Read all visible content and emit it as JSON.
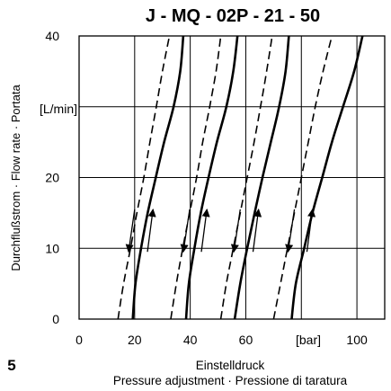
{
  "chart_data": {
    "type": "line",
    "title": "J - MQ - 02P - 21 - 50",
    "xlabel": "Einstelldruck",
    "xlabel_line2": "Pressure adjustment · Pressione di taratura",
    "ylabel": "Durchflußstrom · Flow rate · Portata",
    "x_unit": "[bar]",
    "y_unit": "[L/min]",
    "figure_number": "5",
    "xlim": [
      0,
      110
    ],
    "ylim": [
      0,
      40
    ],
    "x_ticks": [
      "0",
      "20",
      "40",
      "60",
      "",
      "100"
    ],
    "x_tick_values": [
      0,
      20,
      40,
      60,
      80,
      100
    ],
    "y_ticks": [
      "0",
      "10",
      "20",
      "",
      "40"
    ],
    "y_tick_values": [
      0,
      10,
      20,
      30,
      40
    ],
    "grid": true,
    "line_styles": [
      "solid",
      "dashed"
    ],
    "series": [
      {
        "style": "solid",
        "x": [
          19.3,
          20.3,
          22.3,
          24.7,
          27.6,
          30.6,
          34.0,
          36.4,
          37.5
        ],
        "y": [
          0,
          5,
          10,
          15,
          20,
          25,
          30,
          35,
          40
        ]
      },
      {
        "style": "dashed",
        "x": [
          14.0,
          16.0,
          18.5,
          20.8,
          23.3,
          25.5,
          27.8,
          30.0,
          32.5
        ],
        "y": [
          0,
          5,
          10,
          15,
          20,
          25,
          30,
          35,
          40
        ]
      },
      {
        "style": "solid",
        "x": [
          38.5,
          39.5,
          41.5,
          43.8,
          46.6,
          49.6,
          53.0,
          55.5,
          57.0
        ],
        "y": [
          0,
          5,
          10,
          15,
          20,
          25,
          30,
          35,
          40
        ]
      },
      {
        "style": "dashed",
        "x": [
          33.0,
          35.0,
          37.3,
          39.8,
          42.3,
          44.5,
          47.0,
          49.3,
          51.0
        ],
        "y": [
          0,
          5,
          10,
          15,
          20,
          25,
          30,
          35,
          40
        ]
      },
      {
        "style": "solid",
        "x": [
          56.0,
          58.0,
          60.5,
          63.2,
          66.0,
          69.0,
          72.0,
          74.3,
          75.5
        ],
        "y": [
          0,
          5,
          10,
          15,
          20,
          25,
          30,
          35,
          40
        ]
      },
      {
        "style": "dashed",
        "x": [
          51.0,
          53.0,
          55.5,
          58.0,
          60.5,
          63.0,
          65.3,
          67.5,
          69.5
        ],
        "y": [
          0,
          5,
          10,
          15,
          20,
          25,
          30,
          35,
          40
        ]
      },
      {
        "style": "solid",
        "x": [
          76.5,
          78.0,
          81.0,
          84.0,
          87.5,
          91.0,
          95.0,
          99.0,
          102.0
        ],
        "y": [
          0,
          5,
          10,
          15,
          20,
          25,
          30,
          35,
          40
        ]
      },
      {
        "style": "dashed",
        "x": [
          70.0,
          72.5,
          75.0,
          77.5,
          80.0,
          82.5,
          85.0,
          87.8,
          91.0
        ],
        "y": [
          0,
          5,
          10,
          15,
          20,
          25,
          30,
          35,
          40
        ]
      }
    ],
    "arrows": [
      {
        "direction": "down",
        "from": [
          20.0,
          15.5
        ],
        "to": [
          17.8,
          9.5
        ]
      },
      {
        "direction": "up",
        "from": [
          24.6,
          9.5
        ],
        "to": [
          26.6,
          15.5
        ]
      },
      {
        "direction": "down",
        "from": [
          39.8,
          15.5
        ],
        "to": [
          37.5,
          9.5
        ]
      },
      {
        "direction": "up",
        "from": [
          44.0,
          9.5
        ],
        "to": [
          46.0,
          15.5
        ]
      },
      {
        "direction": "down",
        "from": [
          58.0,
          15.5
        ],
        "to": [
          55.7,
          9.5
        ]
      },
      {
        "direction": "up",
        "from": [
          62.6,
          9.5
        ],
        "to": [
          64.6,
          15.5
        ]
      },
      {
        "direction": "down",
        "from": [
          77.5,
          15.5
        ],
        "to": [
          75.2,
          9.5
        ]
      },
      {
        "direction": "up",
        "from": [
          82.0,
          9.5
        ],
        "to": [
          84.0,
          15.5
        ]
      }
    ]
  }
}
